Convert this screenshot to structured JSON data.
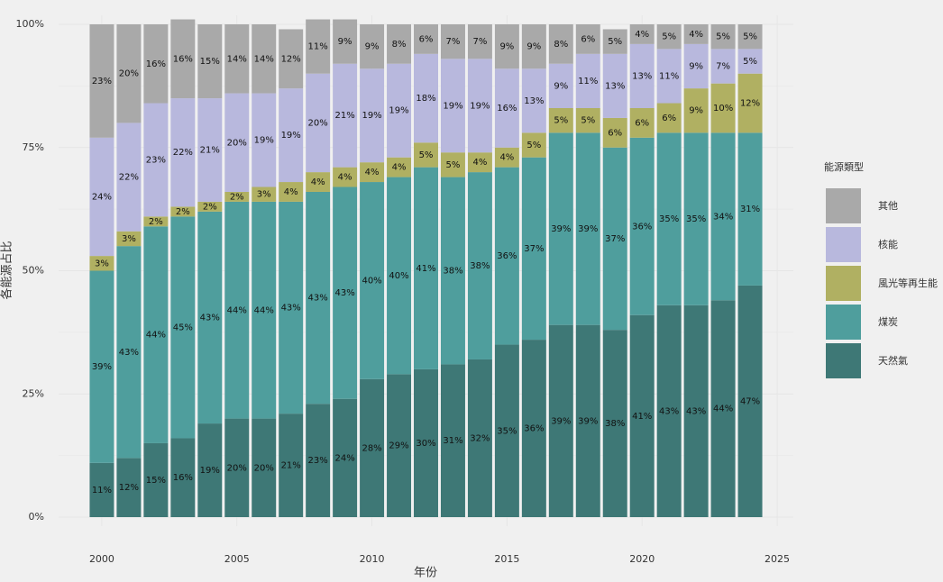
{
  "chart_data": {
    "type": "stacked_bar",
    "x_label": "年份",
    "y_label": "各能源占比",
    "legend_title": "能源類型",
    "x": [
      2000,
      2001,
      2002,
      2003,
      2004,
      2005,
      2006,
      2007,
      2008,
      2009,
      2010,
      2011,
      2012,
      2013,
      2014,
      2015,
      2016,
      2017,
      2018,
      2019,
      2020,
      2021,
      2022,
      2023,
      2024
    ],
    "xlim": [
      1998.4,
      2025.6
    ],
    "xticks": [
      2000,
      2005,
      2010,
      2015,
      2020,
      2025
    ],
    "ylim": [
      0,
      100
    ],
    "yticks": [
      {
        "value": 0,
        "label": "0%"
      },
      {
        "value": 25,
        "label": "25%"
      },
      {
        "value": 50,
        "label": "50%"
      },
      {
        "value": 75,
        "label": "75%"
      },
      {
        "value": 100,
        "label": "100%"
      }
    ],
    "grid": true,
    "series": [
      {
        "name": "天然氣",
        "color": "#3e7876",
        "values": [
          11,
          12,
          15,
          16,
          19,
          20,
          20,
          21,
          23,
          24,
          28,
          29,
          30,
          31,
          32,
          35,
          36,
          39,
          39,
          38,
          41,
          43,
          43,
          44,
          47
        ],
        "value_labels": [
          "11%",
          "12%",
          "15%",
          "16%",
          "19%",
          "20%",
          "20%",
          "21%",
          "23%",
          "24%",
          "28%",
          "29%",
          "30%",
          "31%",
          "32%",
          "35%",
          "36%",
          "39%",
          "39%",
          "38%",
          "41%",
          "43%",
          "43%",
          "44%",
          "47%"
        ]
      },
      {
        "name": "煤炭",
        "color": "#4f9e9d",
        "values": [
          39,
          43,
          44,
          45,
          43,
          44,
          44,
          43,
          43,
          43,
          40,
          40,
          41,
          38,
          38,
          36,
          37,
          39,
          39,
          37,
          36,
          35,
          35,
          34,
          31
        ],
        "value_labels": [
          "39%",
          "43%",
          "44%",
          "45%",
          "43%",
          "44%",
          "44%",
          "43%",
          "43%",
          "43%",
          "40%",
          "40%",
          "41%",
          "38%",
          "38%",
          "36%",
          "37%",
          "39%",
          "39%",
          "37%",
          "36%",
          "35%",
          "35%",
          "34%",
          "31%"
        ]
      },
      {
        "name": "風光等再生能",
        "color": "#b0b062",
        "values": [
          3,
          3,
          2,
          2,
          2,
          2,
          3,
          4,
          4,
          4,
          4,
          4,
          5,
          5,
          4,
          4,
          5,
          5,
          5,
          6,
          6,
          6,
          9,
          10,
          12
        ],
        "value_labels": [
          "3%",
          "3%",
          "2%",
          "2%",
          "2%",
          "2%",
          "3%",
          "4%",
          "4%",
          "4%",
          "4%",
          "4%",
          "5%",
          "5%",
          "4%",
          "4%",
          "5%",
          "5%",
          "5%",
          "6%",
          "6%",
          "6%",
          "9%",
          "10%",
          "12%"
        ]
      },
      {
        "name": "核能",
        "color": "#b8b8dd",
        "values": [
          24,
          22,
          23,
          22,
          21,
          20,
          19,
          19,
          20,
          21,
          19,
          19,
          18,
          19,
          19,
          16,
          13,
          9,
          11,
          13,
          13,
          11,
          9,
          7,
          5
        ],
        "value_labels": [
          "24%",
          "22%",
          "23%",
          "22%",
          "21%",
          "20%",
          "19%",
          "19%",
          "20%",
          "21%",
          "19%",
          "19%",
          "18%",
          "19%",
          "19%",
          "16%",
          "13%",
          "9%",
          "11%",
          "13%",
          "13%",
          "11%",
          "9%",
          "7%",
          "5%"
        ]
      },
      {
        "name": "其他",
        "color": "#a9a9a9",
        "values": [
          23,
          20,
          16,
          16,
          15,
          14,
          14,
          12,
          11,
          9,
          9,
          8,
          6,
          7,
          7,
          9,
          9,
          8,
          6,
          5,
          4,
          5,
          4,
          5,
          5
        ],
        "value_labels": [
          "23%",
          "20%",
          "16%",
          "16%",
          "15%",
          "14%",
          "14%",
          "12%",
          "11%",
          "9%",
          "9%",
          "8%",
          "6%",
          "7%",
          "7%",
          "9%",
          "9%",
          "8%",
          "6%",
          "5%",
          "4%",
          "5%",
          "4%",
          "5%",
          "5%"
        ]
      }
    ]
  }
}
